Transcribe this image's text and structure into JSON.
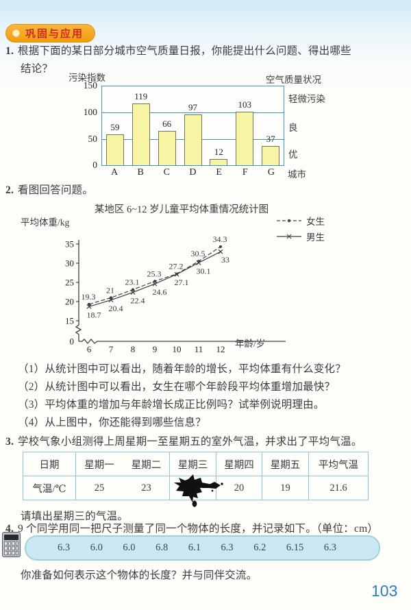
{
  "badge": {
    "label": "巩固与应用"
  },
  "q1": {
    "num": "1.",
    "line1": "根据下面的某日部分城市空气质量日报，你能提出什么问题、得出哪些",
    "line2": "结论？"
  },
  "chart_data": [
    {
      "type": "bar",
      "y_axis_title": "污染指数",
      "right_title": "空气质量状况",
      "x_axis_title": "城市",
      "categories": [
        "A",
        "B",
        "C",
        "D",
        "E",
        "F",
        "G"
      ],
      "values": [
        59,
        119,
        66,
        97,
        12,
        103,
        37
      ],
      "y_ticks": [
        150,
        100,
        50,
        0
      ],
      "ylim": [
        0,
        150
      ],
      "bands": [
        "轻微污染",
        "良",
        "优"
      ],
      "bar_color": "#f7f5a3",
      "frame_color": "#3e93b8",
      "grid": true,
      "legend_position": "none"
    },
    {
      "type": "line",
      "title": "某地区 6~12 岁儿童平均体重情况统计图",
      "y_axis_label": "平均体重/kg",
      "x_axis_label": "年龄/岁",
      "x": [
        6,
        7,
        8,
        9,
        10,
        11,
        12
      ],
      "y_ticks": [
        35,
        30,
        25,
        20,
        15,
        0
      ],
      "ylim": [
        0,
        35
      ],
      "grid": false,
      "legend_position": "top-right",
      "series": [
        {
          "name": "女生",
          "style": "dashed",
          "marker": "dot",
          "values": [
            19.3,
            21,
            23.1,
            25.3,
            27.2,
            30.5,
            34.3
          ]
        },
        {
          "name": "男生",
          "style": "solid",
          "marker": "x",
          "values": [
            18.7,
            20.4,
            22.4,
            24.6,
            27.1,
            30.1,
            33
          ]
        }
      ]
    }
  ],
  "q2": {
    "num": "2.",
    "text": "看图回答问题。",
    "sub_questions": [
      "（1）从统计图中可以看出，随着年龄的增长，平均体重有什么变化？",
      "（2）从统计图中可以看出，女生在哪个年龄段平均体重增加最快？",
      "（3）平均体重的增加与年龄增长成正比例吗？试举例说明理由。",
      "（4）从上图中，你还能得到哪些信息？"
    ]
  },
  "q3": {
    "num": "3.",
    "text": "学校气象小组测得上周星期一至星期五的室外气温，并求出了平均气温。",
    "table": {
      "headers": [
        "日期",
        "星期一",
        "星期二",
        "星期三",
        "星期四",
        "星期五",
        "平均气温"
      ],
      "row_label": "气温/℃",
      "values": [
        "25",
        "23",
        "",
        "20",
        "19",
        "21.6"
      ],
      "blot_column": "星期三"
    },
    "note": "请填出星期三的气温。"
  },
  "q4": {
    "num": "4.",
    "text": "9 个同学用同一把尺子测量了同一个物体的长度，并记录如下。（单位：cm）",
    "measurements": [
      "6.3",
      "6.0",
      "6.0",
      "6.8",
      "6.1",
      "6.3",
      "6.2",
      "6.15",
      "6.3"
    ],
    "question": "你准备如何表示这个物体的长度？并与同伴交流。"
  },
  "page_number": "103",
  "colors": {
    "badge_orange": "#f0a01a",
    "badge_text_red": "#cf2a1b",
    "chart_frame_blue": "#3e93b8",
    "bar_fill_yellow": "#f7f5a3",
    "table_border_blue": "#8fc3dc",
    "measure_box_fill": "#cbe7f2",
    "page_number_blue": "#2b7fb8"
  }
}
